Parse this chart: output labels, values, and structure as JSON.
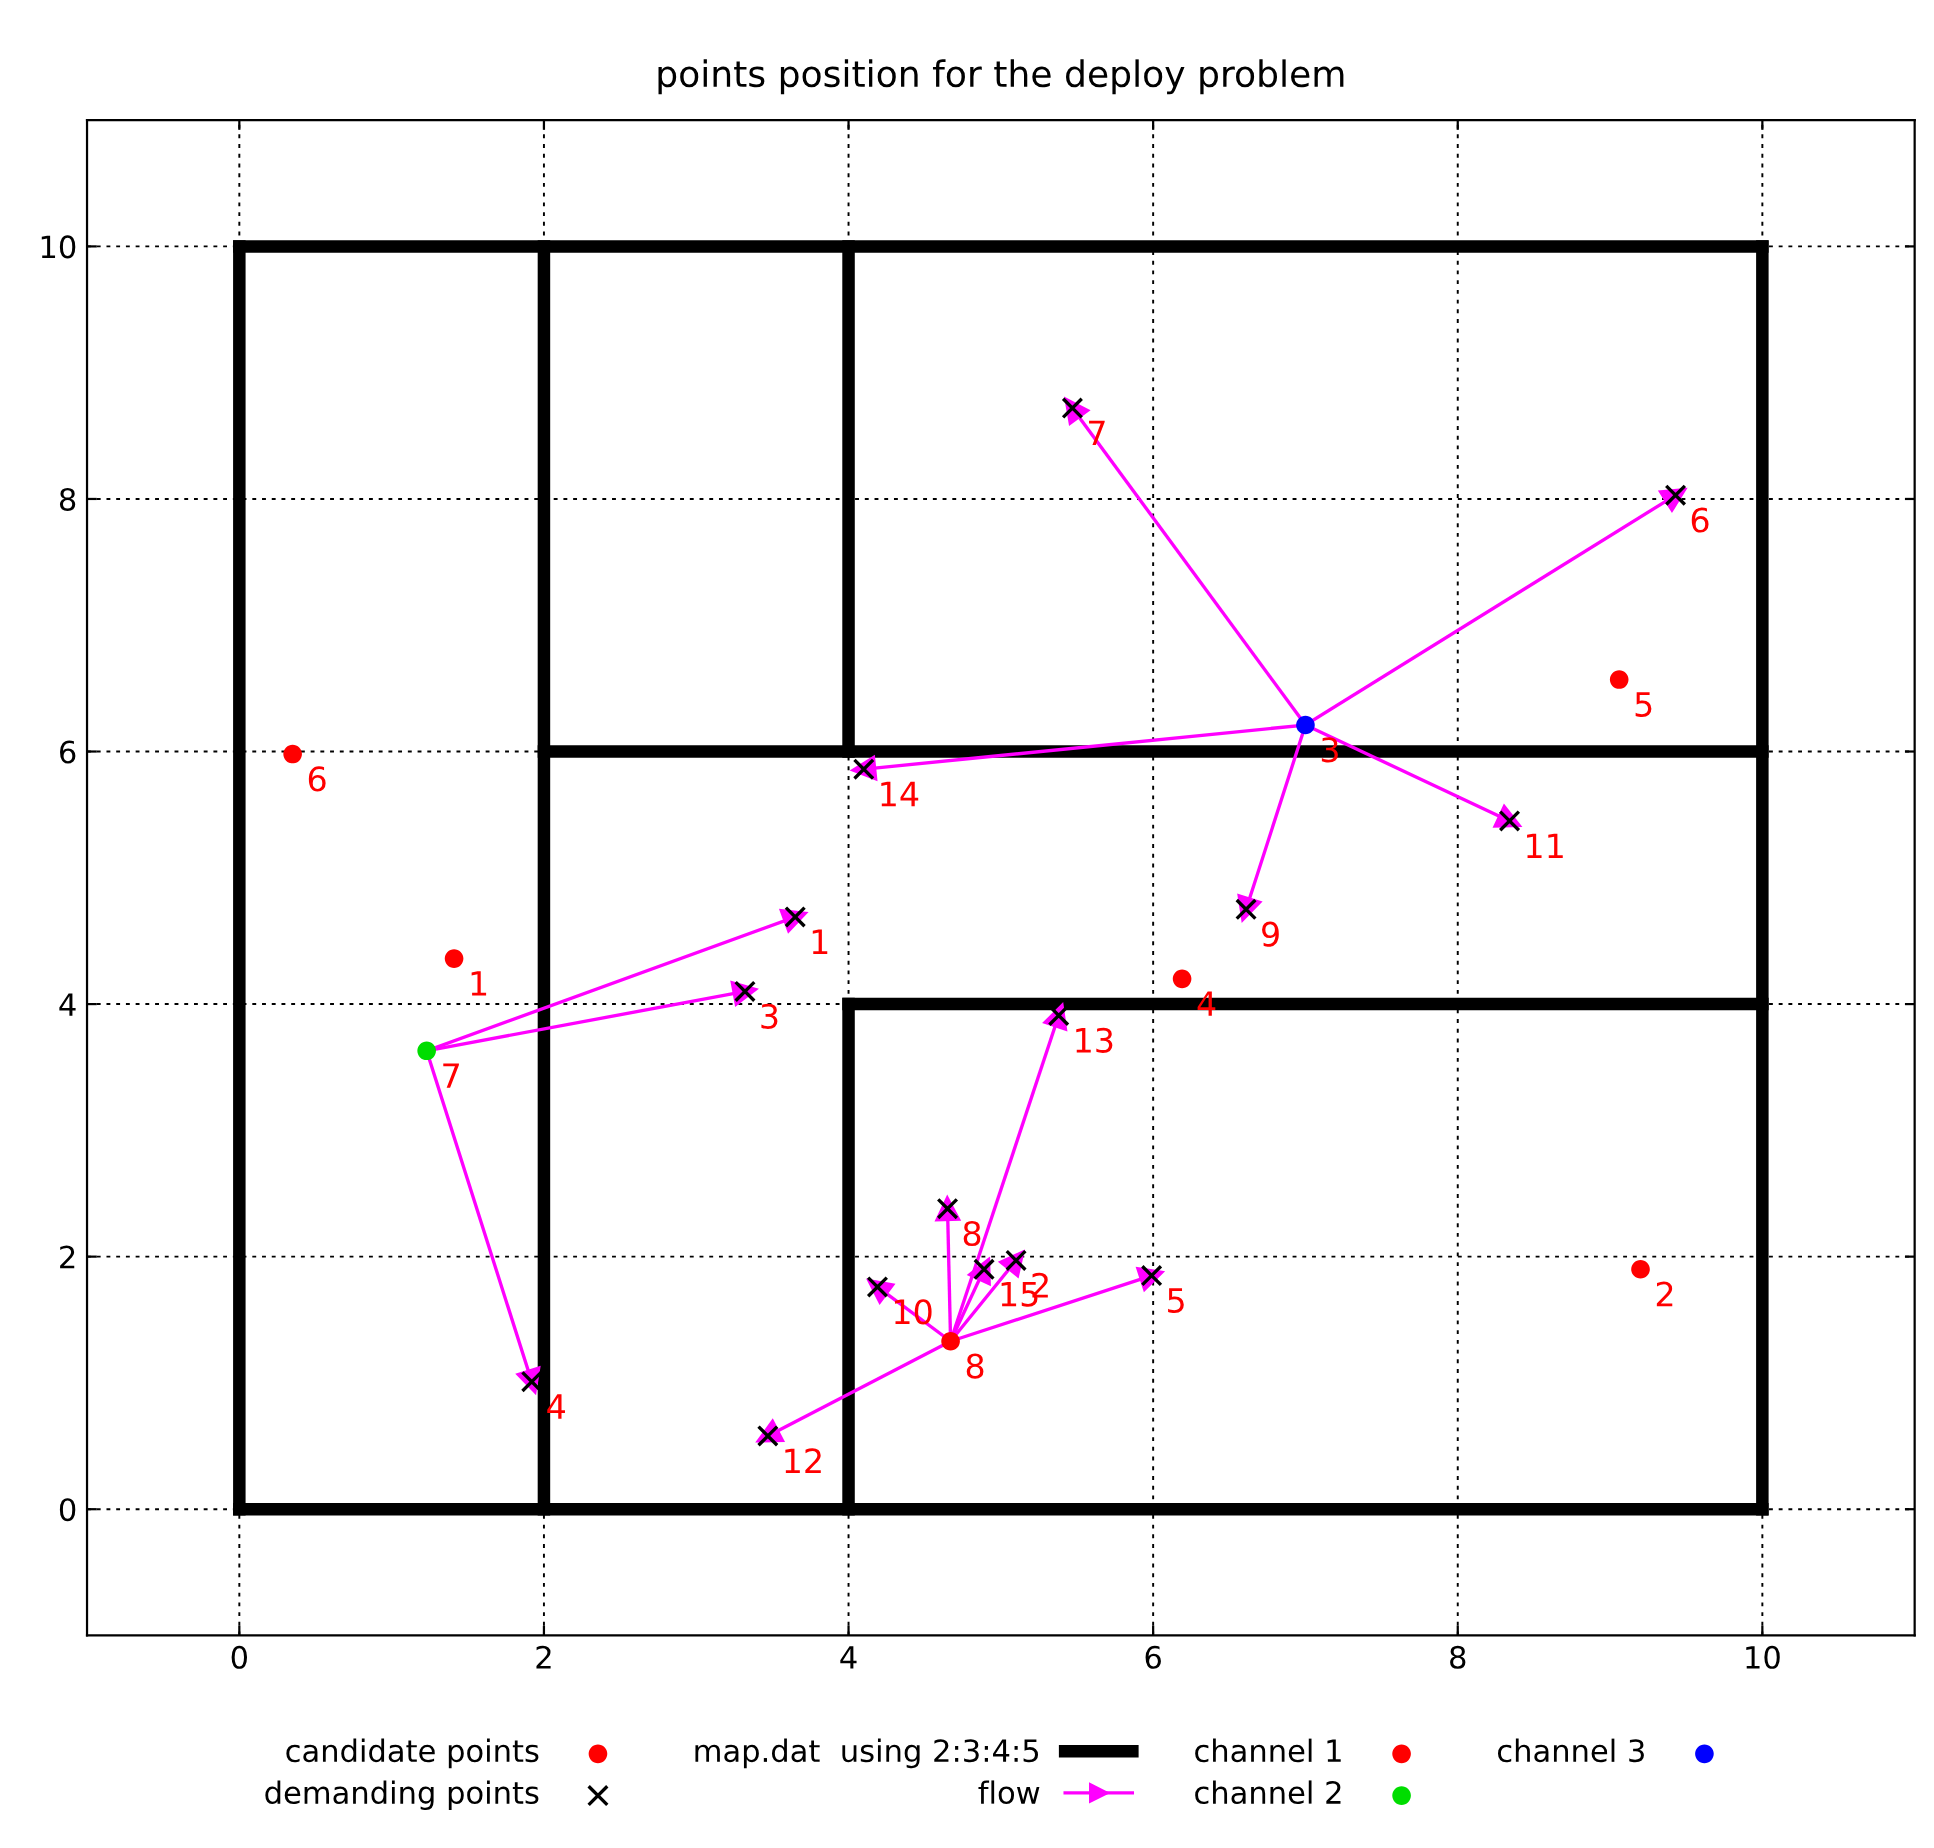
{
  "chart_data": {
    "type": "scatter",
    "title": "points position for the deploy problem",
    "xlim": [
      -1,
      11
    ],
    "ylim": [
      -1,
      11
    ],
    "xticks": [
      0,
      2,
      4,
      6,
      8,
      10
    ],
    "yticks": [
      0,
      2,
      4,
      6,
      8,
      10
    ],
    "grid": true,
    "legend": "bottom",
    "series": [
      {
        "name": "candidate points",
        "marker": "circle",
        "color": "#ff0000",
        "x": [
          1.41,
          9.2,
          6.19,
          9.06,
          0.35
        ],
        "values": [
          4.36,
          1.9,
          4.2,
          6.57,
          5.98
        ]
      },
      {
        "name": "demanding points",
        "marker": "cross",
        "color": "#000000",
        "x": [
          3.65,
          5.1,
          3.32,
          1.92,
          5.99,
          9.43,
          5.47,
          4.65,
          6.61,
          4.19,
          8.34,
          3.47,
          5.38,
          4.1,
          4.89
        ],
        "values": [
          4.69,
          1.97,
          4.1,
          1.01,
          1.85,
          8.03,
          8.72,
          2.38,
          4.75,
          1.76,
          5.45,
          0.58,
          3.91,
          5.86,
          1.9
        ]
      },
      {
        "name": "map.dat  using 2:3:4:5",
        "type": "line",
        "color": "#000000",
        "x": [
          0,
          10
        ],
        "values": [
          10,
          10
        ]
      },
      {
        "type": "line",
        "color": "#000000",
        "x": [
          0,
          10
        ],
        "values": [
          0,
          0
        ]
      },
      {
        "type": "line",
        "color": "#000000",
        "x": [
          0,
          0
        ],
        "values": [
          0,
          10
        ]
      },
      {
        "type": "line",
        "color": "#000000",
        "x": [
          10,
          10
        ],
        "values": [
          0,
          10
        ]
      },
      {
        "type": "line",
        "color": "#000000",
        "x": [
          2,
          2
        ],
        "values": [
          0,
          10
        ]
      },
      {
        "type": "line",
        "color": "#000000",
        "x": [
          4,
          4
        ],
        "values": [
          6,
          10
        ]
      },
      {
        "type": "line",
        "color": "#000000",
        "x": [
          2,
          10
        ],
        "values": [
          6,
          6
        ]
      },
      {
        "type": "line",
        "color": "#000000",
        "x": [
          4,
          4
        ],
        "values": [
          0,
          4
        ]
      },
      {
        "type": "line",
        "color": "#000000",
        "x": [
          4,
          10
        ],
        "values": [
          4,
          4
        ]
      },
      {
        "name": "flow",
        "type": "line",
        "marker": "triangle",
        "color": "#ff00ff",
        "x": [
          7.0,
          9.43
        ],
        "values": [
          6.21,
          8.03
        ]
      },
      {
        "type": "line",
        "marker": "triangle",
        "color": "#ff00ff",
        "x": [
          7.0,
          5.47
        ],
        "values": [
          6.21,
          8.72
        ]
      },
      {
        "type": "line",
        "marker": "triangle",
        "color": "#ff00ff",
        "x": [
          7.0,
          6.61
        ],
        "values": [
          6.21,
          4.75
        ]
      },
      {
        "type": "line",
        "marker": "triangle",
        "color": "#ff00ff",
        "x": [
          7.0,
          8.34
        ],
        "values": [
          6.21,
          5.45
        ]
      },
      {
        "type": "line",
        "marker": "triangle",
        "color": "#ff00ff",
        "x": [
          7.0,
          4.1
        ],
        "values": [
          6.21,
          5.86
        ]
      },
      {
        "type": "line",
        "marker": "triangle",
        "color": "#ff00ff",
        "x": [
          1.23,
          3.65
        ],
        "values": [
          3.63,
          4.69
        ]
      },
      {
        "type": "line",
        "marker": "triangle",
        "color": "#ff00ff",
        "x": [
          1.23,
          3.32
        ],
        "values": [
          3.63,
          4.1
        ]
      },
      {
        "type": "line",
        "marker": "triangle",
        "color": "#ff00ff",
        "x": [
          1.23,
          1.92
        ],
        "values": [
          3.63,
          1.01
        ]
      },
      {
        "type": "line",
        "marker": "triangle",
        "color": "#ff00ff",
        "x": [
          4.67,
          5.1
        ],
        "values": [
          1.33,
          1.97
        ]
      },
      {
        "type": "line",
        "marker": "triangle",
        "color": "#ff00ff",
        "x": [
          4.67,
          5.99
        ],
        "values": [
          1.33,
          1.85
        ]
      },
      {
        "type": "line",
        "marker": "triangle",
        "color": "#ff00ff",
        "x": [
          4.67,
          4.65
        ],
        "values": [
          1.33,
          2.38
        ]
      },
      {
        "type": "line",
        "marker": "triangle",
        "color": "#ff00ff",
        "x": [
          4.67,
          4.19
        ],
        "values": [
          1.33,
          1.76
        ]
      },
      {
        "type": "line",
        "marker": "triangle",
        "color": "#ff00ff",
        "x": [
          4.67,
          3.47
        ],
        "values": [
          1.33,
          0.58
        ]
      },
      {
        "type": "line",
        "marker": "triangle",
        "color": "#ff00ff",
        "x": [
          4.67,
          5.38
        ],
        "values": [
          1.33,
          3.91
        ]
      },
      {
        "type": "line",
        "marker": "triangle",
        "color": "#ff00ff",
        "x": [
          4.67,
          4.89
        ],
        "values": [
          1.33,
          1.9
        ]
      },
      {
        "name": "channel 1",
        "marker": "circle",
        "color": "#ff0000",
        "x": [
          4.67
        ],
        "values": [
          1.33
        ]
      },
      {
        "name": "channel 2",
        "marker": "circle",
        "color": "#00dd00",
        "x": [
          1.23
        ],
        "values": [
          3.63
        ]
      },
      {
        "name": "channel 3",
        "marker": "circle",
        "color": "#0000ff",
        "x": [
          7.0
        ],
        "values": [
          6.21
        ]
      }
    ],
    "annotations": [
      {
        "text": "1",
        "x": 1.41,
        "y": 4.36
      },
      {
        "text": "2",
        "x": 9.2,
        "y": 1.9
      },
      {
        "text": "3",
        "x": 7.0,
        "y": 6.21
      },
      {
        "text": "4",
        "x": 6.19,
        "y": 4.2
      },
      {
        "text": "5",
        "x": 9.06,
        "y": 6.57
      },
      {
        "text": "6",
        "x": 0.35,
        "y": 5.98
      },
      {
        "text": "7",
        "x": 1.23,
        "y": 3.63
      },
      {
        "text": "8",
        "x": 4.67,
        "y": 1.33
      },
      {
        "text": "1",
        "x": 3.65,
        "y": 4.69
      },
      {
        "text": "2",
        "x": 5.1,
        "y": 1.97
      },
      {
        "text": "3",
        "x": 3.32,
        "y": 4.1
      },
      {
        "text": "4",
        "x": 1.92,
        "y": 1.01
      },
      {
        "text": "5",
        "x": 5.99,
        "y": 1.85
      },
      {
        "text": "6",
        "x": 9.43,
        "y": 8.03
      },
      {
        "text": "7",
        "x": 5.47,
        "y": 8.72
      },
      {
        "text": "8",
        "x": 4.65,
        "y": 2.38
      },
      {
        "text": "9",
        "x": 6.61,
        "y": 4.75
      },
      {
        "text": "10",
        "x": 4.19,
        "y": 1.76
      },
      {
        "text": "11",
        "x": 8.34,
        "y": 5.45
      },
      {
        "text": "12",
        "x": 3.47,
        "y": 0.58
      },
      {
        "text": "13",
        "x": 5.38,
        "y": 3.91
      },
      {
        "text": "14",
        "x": 4.1,
        "y": 5.86
      },
      {
        "text": "15",
        "x": 4.89,
        "y": 1.9
      }
    ]
  }
}
